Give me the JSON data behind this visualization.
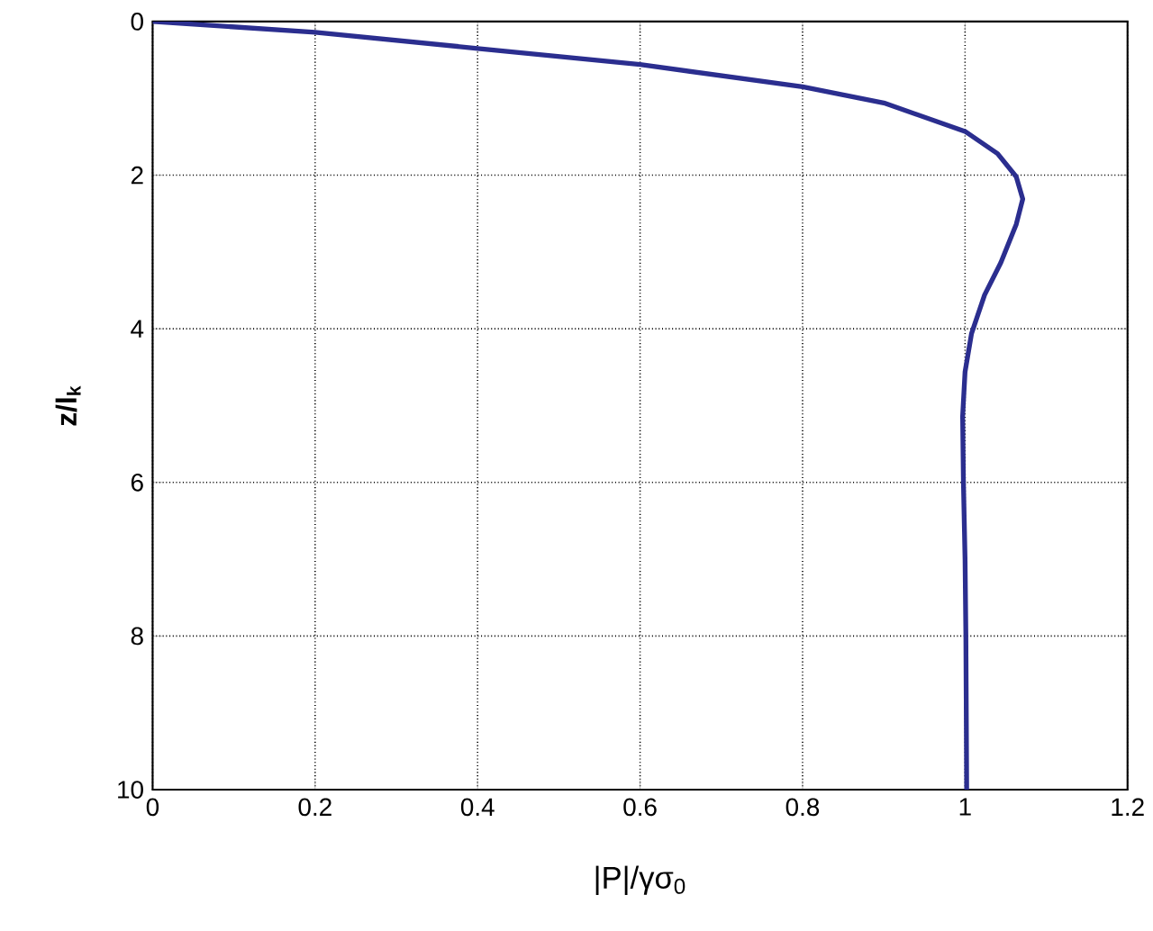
{
  "chart_data": {
    "type": "line",
    "xlabel": "|P|/γσ$_{0}$",
    "ylabel": "z/l$_{k}$",
    "xlim": [
      0,
      1.2
    ],
    "ylim": [
      10,
      0
    ],
    "xticks": [
      0,
      0.2,
      0.4,
      0.6,
      0.8,
      1,
      1.2
    ],
    "yticks": [
      0,
      2,
      4,
      6,
      8,
      10
    ],
    "grid": true,
    "line_style": "solid",
    "marker": "none",
    "series": [
      {
        "color": "#2b2e8f",
        "x": [
          0,
          0.2,
          0.4,
          0.6,
          0.8,
          0.9,
          1.0,
          1.04,
          1.063,
          1.071,
          1.063,
          1.044,
          1.024,
          1.008,
          1.0,
          0.997,
          0.998,
          1.0,
          1.001,
          1.002
        ],
        "values": [
          0,
          0.14,
          0.35,
          0.56,
          0.85,
          1.06,
          1.43,
          1.72,
          2.02,
          2.31,
          2.64,
          3.14,
          3.56,
          4.06,
          4.56,
          5.14,
          6,
          7,
          8,
          10
        ]
      }
    ]
  }
}
